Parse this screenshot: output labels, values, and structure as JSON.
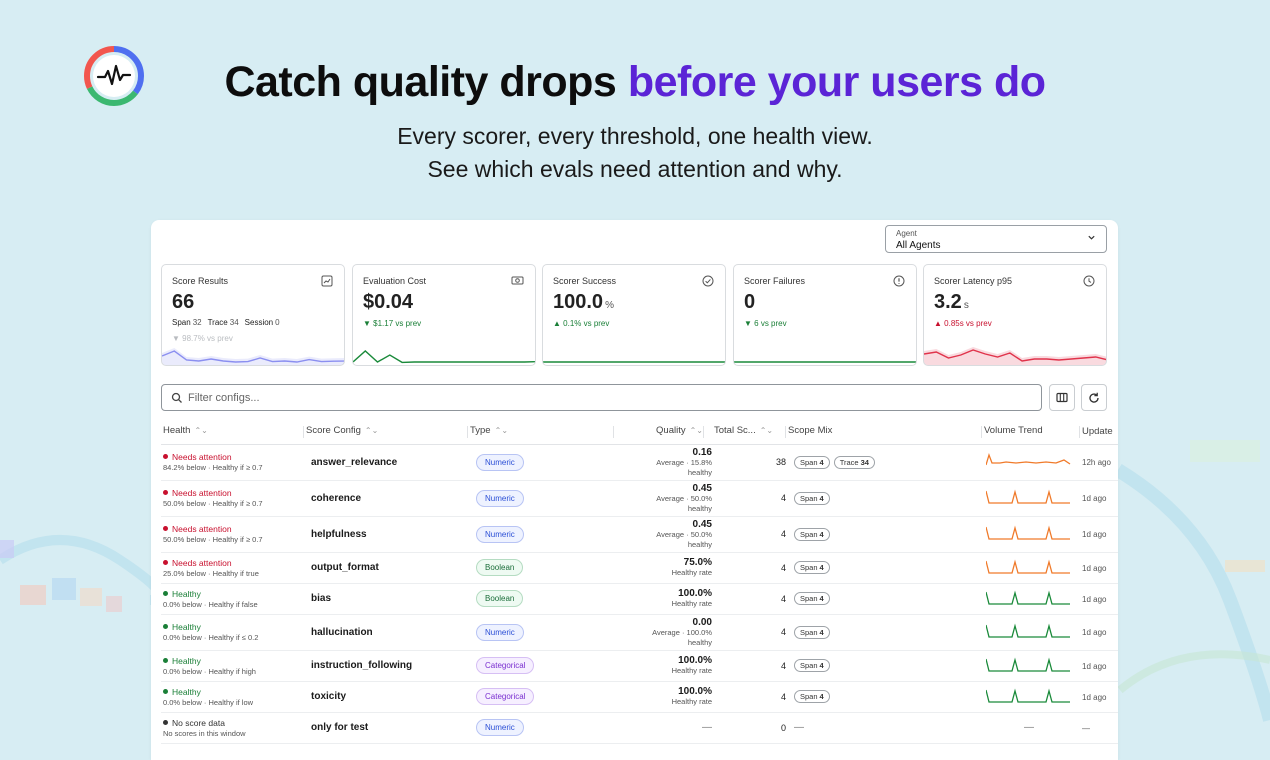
{
  "hero": {
    "title_plain": "Catch quality drops",
    "title_accent": "before your users do",
    "subtitle_line1": "Every scorer, every threshold, one health view.",
    "subtitle_line2": "See which evals need attention and why."
  },
  "colors": {
    "accent": "#5b24d6",
    "red": "#c8102e",
    "green": "#1a7f37",
    "gray": "#333333",
    "spark_blue": "#8b8ff0",
    "spark_green": "#1a8a3a",
    "spark_red": "#e0334b",
    "spark_orange": "#f07a2a"
  },
  "agent_select": {
    "label": "Agent",
    "value": "All Agents"
  },
  "cards": [
    {
      "title": "Score Results",
      "icon": "chart-icon",
      "value": "66",
      "unit": "",
      "sub": [
        [
          "Span",
          "32"
        ],
        [
          "Trace",
          "34"
        ],
        [
          "Session",
          "0"
        ]
      ],
      "delta": "",
      "delta_faded": "▼ 98.7% vs prev",
      "spark": "blue",
      "points": [
        0.4,
        0.65,
        0.2,
        0.15,
        0.25,
        0.15,
        0.1,
        0.12,
        0.3,
        0.12,
        0.15,
        0.1,
        0.22,
        0.12,
        0.14,
        0.15
      ]
    },
    {
      "title": "Evaluation Cost",
      "icon": "money-icon",
      "value": "$0.04",
      "unit": "",
      "sub": [],
      "delta": "▼ $1.17 vs prev",
      "delta_color": "green",
      "spark": "green",
      "area": false,
      "points": [
        0.1,
        0.65,
        0.1,
        0.45,
        0.08,
        0.1,
        0.1,
        0.1,
        0.1,
        0.1,
        0.1,
        0.1,
        0.1,
        0.1,
        0.1,
        0.12
      ]
    },
    {
      "title": "Scorer Success",
      "icon": "check-circle-icon",
      "value": "100.0",
      "unit": "%",
      "sub": [],
      "delta": "▲ 0.1% vs prev",
      "delta_color": "green",
      "spark": "green",
      "area": false,
      "points": [
        0.1,
        0.1,
        0.1,
        0.1,
        0.1,
        0.1,
        0.1,
        0.1,
        0.1,
        0.1,
        0.1,
        0.1,
        0.1,
        0.1,
        0.1,
        0.1
      ]
    },
    {
      "title": "Scorer Failures",
      "icon": "alert-circle-icon",
      "value": "0",
      "unit": "",
      "sub": [],
      "delta": "▼ 6 vs prev",
      "delta_color": "green",
      "spark": "green",
      "area": false,
      "points": [
        0.1,
        0.1,
        0.1,
        0.1,
        0.1,
        0.1,
        0.1,
        0.1,
        0.1,
        0.1,
        0.1,
        0.1,
        0.1,
        0.1,
        0.1,
        0.1
      ]
    },
    {
      "title": "Scorer Latency p95",
      "icon": "clock-icon",
      "value": "3.2",
      "unit": "s",
      "sub": [],
      "delta": "▲ 0.85s vs prev",
      "delta_color": "red",
      "spark": "red",
      "area": true,
      "points": [
        0.5,
        0.6,
        0.3,
        0.45,
        0.7,
        0.5,
        0.35,
        0.55,
        0.15,
        0.25,
        0.25,
        0.2,
        0.25,
        0.3,
        0.35,
        0.2
      ]
    }
  ],
  "filter": {
    "placeholder": "Filter configs..."
  },
  "table": {
    "headers": [
      "Health",
      "Score Config",
      "Type",
      "Quality",
      "Total Sc...",
      "Scope Mix",
      "Volume Trend",
      "Update"
    ],
    "rows": [
      {
        "status": "Needs attention",
        "status_color": "red",
        "detail": "84.2% below · Healthy if ≥ 0.7",
        "config": "answer_relevance",
        "type": "Numeric",
        "quality": "0.16",
        "quality_sub": [
          "Average · 15.8%",
          "healthy"
        ],
        "total": "38",
        "scope": [
          [
            "Span",
            "4"
          ],
          [
            "Trace",
            "34"
          ]
        ],
        "trend": "orange-first",
        "updated": "12h ago"
      },
      {
        "status": "Needs attention",
        "status_color": "red",
        "detail": "50.0% below · Healthy if ≥ 0.7",
        "config": "coherence",
        "type": "Numeric",
        "quality": "0.45",
        "quality_sub": [
          "Average · 50.0%",
          "healthy"
        ],
        "total": "4",
        "scope": [
          [
            "Span",
            "4"
          ]
        ],
        "trend": "orange",
        "updated": "1d ago"
      },
      {
        "status": "Needs attention",
        "status_color": "red",
        "detail": "50.0% below · Healthy if ≥ 0.7",
        "config": "helpfulness",
        "type": "Numeric",
        "quality": "0.45",
        "quality_sub": [
          "Average · 50.0%",
          "healthy"
        ],
        "total": "4",
        "scope": [
          [
            "Span",
            "4"
          ]
        ],
        "trend": "orange",
        "updated": "1d ago"
      },
      {
        "status": "Needs attention",
        "status_color": "red",
        "detail": "25.0% below · Healthy if true",
        "config": "output_format",
        "type": "Boolean",
        "quality": "75.0%",
        "quality_sub": [
          "Healthy rate"
        ],
        "total": "4",
        "scope": [
          [
            "Span",
            "4"
          ]
        ],
        "trend": "orange",
        "updated": "1d ago"
      },
      {
        "status": "Healthy",
        "status_color": "green",
        "detail": "0.0% below · Healthy if false",
        "config": "bias",
        "type": "Boolean",
        "quality": "100.0%",
        "quality_sub": [
          "Healthy rate"
        ],
        "total": "4",
        "scope": [
          [
            "Span",
            "4"
          ]
        ],
        "trend": "green",
        "updated": "1d ago"
      },
      {
        "status": "Healthy",
        "status_color": "green",
        "detail": "0.0% below · Healthy if ≤ 0.2",
        "config": "hallucination",
        "type": "Numeric",
        "quality": "0.00",
        "quality_sub": [
          "Average · 100.0%",
          "healthy"
        ],
        "total": "4",
        "scope": [
          [
            "Span",
            "4"
          ]
        ],
        "trend": "green",
        "updated": "1d ago"
      },
      {
        "status": "Healthy",
        "status_color": "green",
        "detail": "0.0% below · Healthy if high",
        "config": "instruction_following",
        "type": "Categorical",
        "quality": "100.0%",
        "quality_sub": [
          "Healthy rate"
        ],
        "total": "4",
        "scope": [
          [
            "Span",
            "4"
          ]
        ],
        "trend": "green",
        "updated": "1d ago"
      },
      {
        "status": "Healthy",
        "status_color": "green",
        "detail": "0.0% below · Healthy if low",
        "config": "toxicity",
        "type": "Categorical",
        "quality": "100.0%",
        "quality_sub": [
          "Healthy rate"
        ],
        "total": "4",
        "scope": [
          [
            "Span",
            "4"
          ]
        ],
        "trend": "green",
        "updated": "1d ago"
      },
      {
        "status": "No score data",
        "status_color": "gray",
        "detail": "No scores in this window",
        "config": "only for test",
        "type": "Numeric",
        "quality": "—",
        "quality_sub": [],
        "total": "0",
        "scope": [],
        "scope_empty": "—",
        "trend": "none",
        "trend_empty": "—",
        "updated": "—"
      }
    ]
  }
}
